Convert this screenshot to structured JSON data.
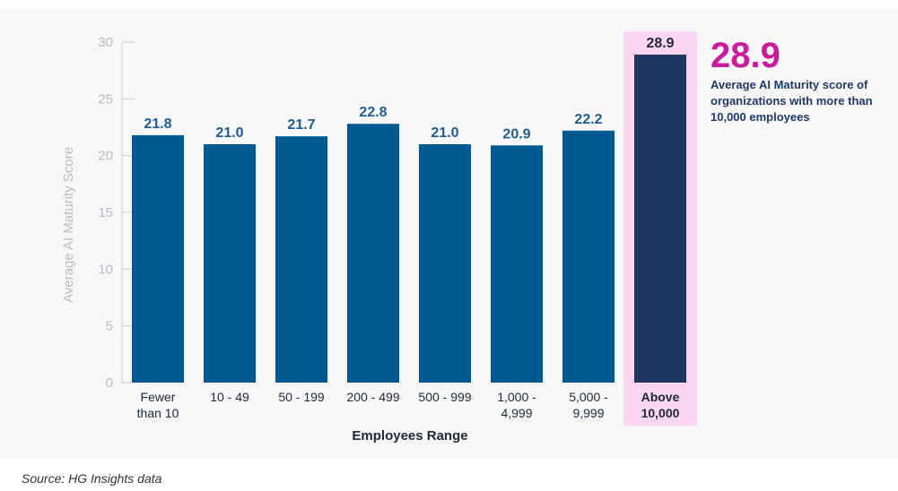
{
  "chart_data": {
    "type": "bar",
    "title": "",
    "xlabel": "Employees Range",
    "ylabel": "Average AI Maturity Score",
    "ylim": [
      0,
      30
    ],
    "yticks": [
      0,
      5,
      10,
      15,
      20,
      25,
      30
    ],
    "categories": [
      [
        "Fewer",
        "than 10"
      ],
      [
        "10 - 49"
      ],
      [
        "50 - 199"
      ],
      [
        "200 - 499"
      ],
      [
        "500 - 999"
      ],
      [
        "1,000 -",
        "4,999"
      ],
      [
        "5,000 -",
        "9,999"
      ],
      [
        "Above",
        "10,000"
      ]
    ],
    "values": [
      21.8,
      21.0,
      21.7,
      22.8,
      21.0,
      20.9,
      22.2,
      28.9
    ],
    "value_labels": [
      "21.8",
      "21.0",
      "21.7",
      "22.8",
      "21.0",
      "20.9",
      "22.2",
      "28.9"
    ],
    "highlight_index": 7,
    "colors": {
      "bar": "#005a92",
      "highlight_bar": "#1e3461",
      "highlight_bg": "#f9d5ef"
    }
  },
  "callout": {
    "value": "28.9",
    "text": "Average AI Maturity score of organizations with more than 10,000 employees"
  },
  "source": "Source: HG Insights data"
}
